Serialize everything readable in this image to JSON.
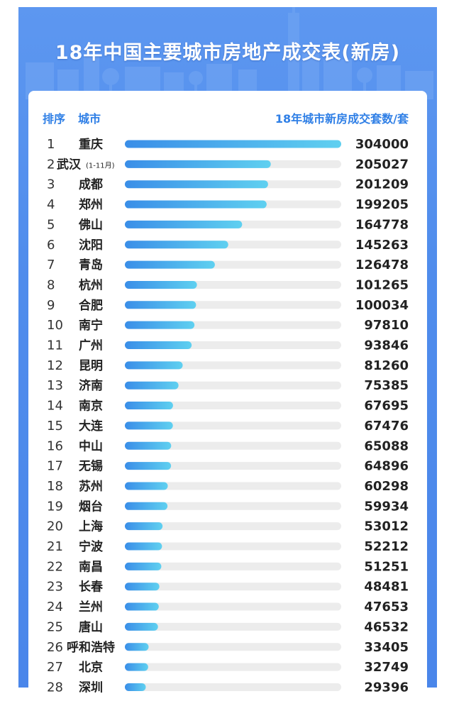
{
  "title": "18年中国主要城市房地产成交表(新房)",
  "header": {
    "rank_label": "排序",
    "city_label": "城市",
    "metric_label": "18年城市新房成交套数/套"
  },
  "colors": {
    "background": "#4f8cec",
    "header_text": "#2f7fe6",
    "bar_start": "#3a8ee8",
    "bar_end": "#5fd0f0",
    "track": "#ececec"
  },
  "chart_data": {
    "type": "bar",
    "orientation": "horizontal",
    "xlim": [
      0,
      304000
    ],
    "ranks": [
      "1",
      "2",
      "3",
      "4",
      "5",
      "6",
      "7",
      "8",
      "9",
      "10",
      "11",
      "12",
      "13",
      "14",
      "15",
      "16",
      "17",
      "18",
      "19",
      "20",
      "21",
      "22",
      "23",
      "24",
      "25",
      "26",
      "27",
      "28"
    ],
    "categories": [
      "重庆",
      "武汉",
      "成都",
      "郑州",
      "佛山",
      "沈阳",
      "青岛",
      "杭州",
      "合肥",
      "南宁",
      "广州",
      "昆明",
      "济南",
      "南京",
      "大连",
      "中山",
      "无锡",
      "苏州",
      "烟台",
      "上海",
      "宁波",
      "南昌",
      "长春",
      "兰州",
      "唐山",
      "呼和浩特",
      "北京",
      "深圳"
    ],
    "notes": [
      "",
      "(1-11月)",
      "",
      "",
      "",
      "",
      "",
      "",
      "",
      "",
      "",
      "",
      "",
      "",
      "",
      "",
      "",
      "",
      "",
      "",
      "",
      "",
      "",
      "",
      "",
      "",
      "",
      ""
    ],
    "values": [
      304000,
      205027,
      201209,
      199205,
      164778,
      145263,
      126478,
      101265,
      100034,
      97810,
      93846,
      81260,
      75385,
      67695,
      67476,
      65088,
      64896,
      60298,
      59934,
      53012,
      52212,
      51251,
      48481,
      47653,
      46532,
      33405,
      32749,
      29396
    ]
  }
}
